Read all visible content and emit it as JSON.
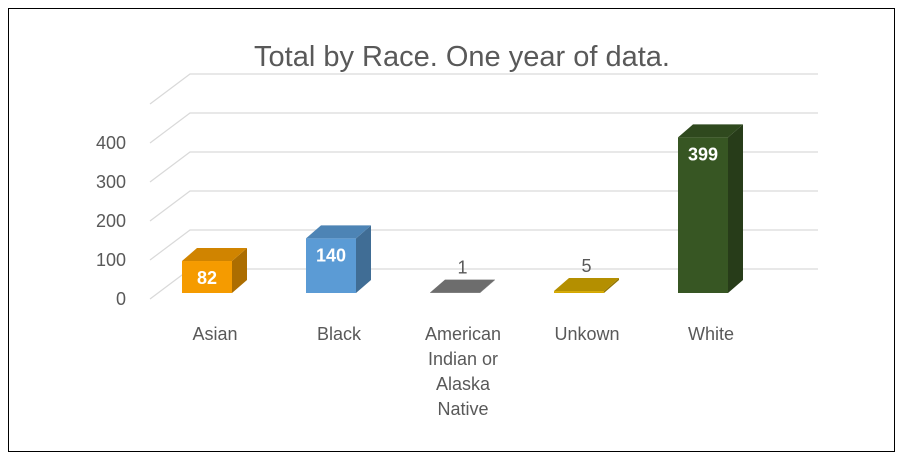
{
  "chart_data": {
    "type": "bar3d",
    "title": "Total by Race.  One year of data.",
    "categories": [
      "Asian",
      "Black",
      "American Indian or Alaska Native",
      "Unkown",
      "White"
    ],
    "values": [
      82,
      140,
      1,
      5,
      399
    ],
    "colors": [
      "#f59b00",
      "#5b9bd5",
      "#808080",
      "#d4a800",
      "#375623"
    ],
    "ylim": [
      0,
      500
    ],
    "yticks": [
      0,
      100,
      200,
      300,
      400
    ],
    "grid": true
  }
}
